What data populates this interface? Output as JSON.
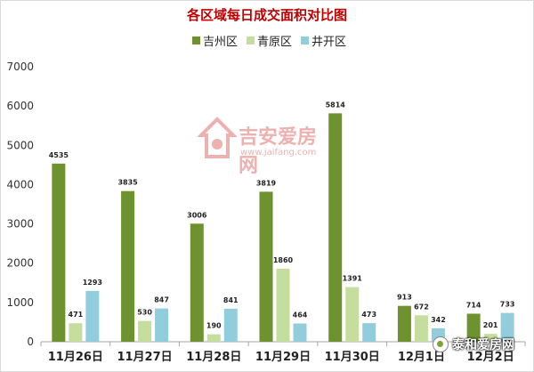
{
  "chart_data": {
    "type": "bar",
    "title": "各区域每日成交面积对比图",
    "categories": [
      "11月26日",
      "11月27日",
      "11月28日",
      "11月29日",
      "11月30日",
      "12月1日",
      "12月2日"
    ],
    "series": [
      {
        "name": "吉州区",
        "color": "#6e922f",
        "values": [
          4535,
          3835,
          3006,
          3819,
          5814,
          913,
          714
        ]
      },
      {
        "name": "青原区",
        "color": "#c5de9e",
        "values": [
          471,
          530,
          190,
          1860,
          1391,
          672,
          201
        ]
      },
      {
        "name": "井开区",
        "color": "#92cddc",
        "values": [
          1293,
          847,
          841,
          464,
          473,
          342,
          733
        ]
      }
    ],
    "ylim": [
      0,
      7000
    ],
    "yticks": [
      0,
      1000,
      2000,
      3000,
      4000,
      5000,
      6000,
      7000
    ],
    "legend_position": "top-center",
    "grid": false
  },
  "watermark": {
    "brand": "吉安爱房网",
    "url": "www.jaifang.com"
  },
  "badge": {
    "label": "泰和爱房网"
  }
}
